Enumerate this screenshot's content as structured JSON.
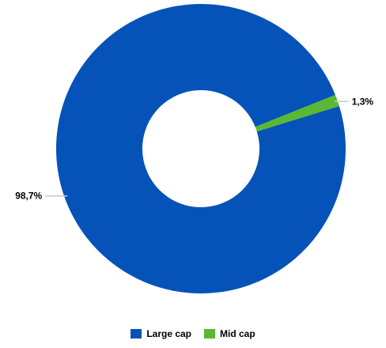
{
  "chart_data": {
    "type": "pie",
    "variant": "donut",
    "categories": [
      "Large cap",
      "Mid cap"
    ],
    "values": [
      98.7,
      1.3
    ],
    "data_labels": [
      "98,7%",
      "1,3%"
    ],
    "colors": [
      "#0553B8",
      "#5AB833"
    ],
    "title": "",
    "legend": {
      "placement": "bottom",
      "items": [
        {
          "label": "Large cap",
          "color": "#0553B8"
        },
        {
          "label": "Mid cap",
          "color": "#5AB833"
        }
      ]
    }
  }
}
